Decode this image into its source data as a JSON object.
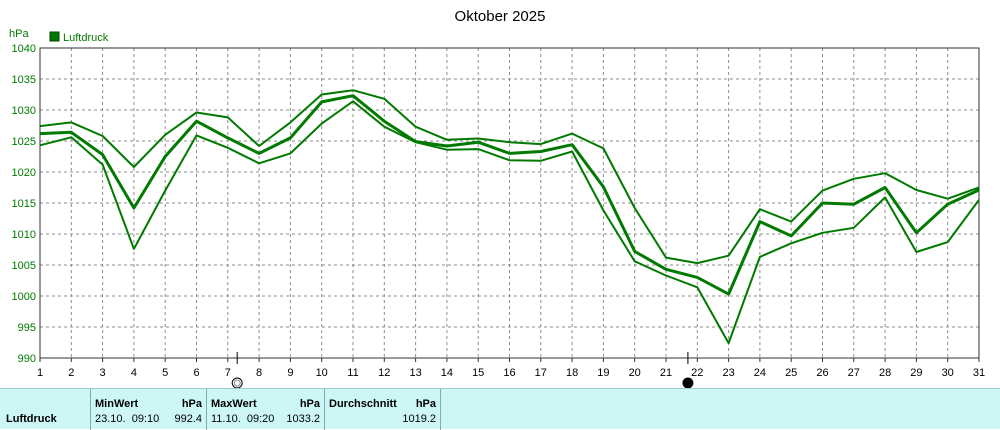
{
  "chart_data": {
    "type": "line",
    "title": "Oktober 2025",
    "ylabel": "hPa",
    "ylim": [
      990,
      1040
    ],
    "y_ticks": [
      990,
      995,
      1000,
      1005,
      1010,
      1015,
      1020,
      1025,
      1030,
      1035,
      1040
    ],
    "x": [
      1,
      2,
      3,
      4,
      5,
      6,
      7,
      8,
      9,
      10,
      11,
      12,
      13,
      14,
      15,
      16,
      17,
      18,
      19,
      20,
      21,
      22,
      23,
      24,
      25,
      26,
      27,
      28,
      29,
      30,
      31
    ],
    "x_ticks": [
      "1",
      "2",
      "3",
      "4",
      "5",
      "6",
      "7",
      "8",
      "9",
      "10",
      "11",
      "12",
      "13",
      "14",
      "15",
      "16",
      "17",
      "18",
      "19",
      "20",
      "21",
      "22",
      "23",
      "24",
      "25",
      "26",
      "27",
      "28",
      "29",
      "30",
      "31"
    ],
    "grid": true,
    "legend": "top-left",
    "legend_entries": [
      "Luftdruck"
    ],
    "color": "#007a00",
    "series": [
      {
        "name": "Luftdruck",
        "role": "mean",
        "values": [
          1026.2,
          1026.4,
          1022.8,
          1014.2,
          1022.5,
          1028.2,
          1025.5,
          1023.0,
          1025.5,
          1031.3,
          1032.3,
          1028.2,
          1024.9,
          1024.2,
          1024.8,
          1023.0,
          1023.3,
          1024.4,
          1017.6,
          1007.2,
          1004.3,
          1003.0,
          1000.3,
          1012.0,
          1009.7,
          1015.0,
          1014.8,
          1017.5,
          1010.2,
          1014.8,
          1017.1
        ]
      },
      {
        "role": "max",
        "values": [
          1027.4,
          1028.0,
          1025.8,
          1020.8,
          1026.0,
          1029.6,
          1028.8,
          1024.2,
          1028.0,
          1032.5,
          1033.2,
          1031.8,
          1027.3,
          1025.2,
          1025.4,
          1024.8,
          1024.5,
          1026.2,
          1023.8,
          1014.2,
          1006.2,
          1005.3,
          1006.5,
          1014.0,
          1012.0,
          1017.0,
          1018.9,
          1019.8,
          1017.1,
          1015.7,
          1017.5
        ]
      },
      {
        "role": "min",
        "values": [
          1024.3,
          1025.6,
          1021.2,
          1007.6,
          1017.0,
          1025.9,
          1023.9,
          1021.4,
          1023.0,
          1027.8,
          1031.4,
          1027.3,
          1024.8,
          1023.6,
          1023.7,
          1021.9,
          1021.8,
          1023.3,
          1013.8,
          1005.6,
          1003.3,
          1001.4,
          992.4,
          1006.3,
          1008.5,
          1010.2,
          1011.0,
          1015.9,
          1007.1,
          1008.7,
          1015.5
        ]
      }
    ],
    "markers": [
      {
        "day": 7.3,
        "symbol": "open-circle",
        "label": ""
      },
      {
        "day": 21.7,
        "symbol": "filled-circle",
        "label": ""
      }
    ]
  },
  "stats": {
    "row_label": "Luftdruck",
    "min": {
      "header": "MinWert",
      "unit": "hPa",
      "datetime": "23.10.  09:10",
      "value": "992.4"
    },
    "max": {
      "header": "MaxWert",
      "unit": "hPa",
      "datetime": "11.10.  09:20",
      "value": "1033.2"
    },
    "avg": {
      "header": "Durchschnitt",
      "unit": "hPa",
      "value": "1019.2"
    }
  }
}
